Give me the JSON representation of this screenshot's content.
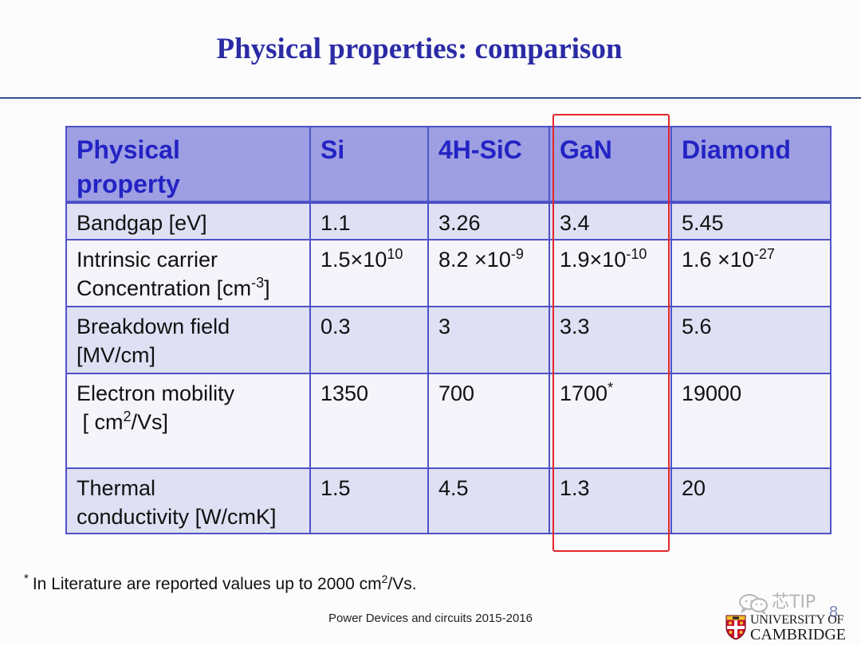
{
  "slide": {
    "title": "Physical properties: comparison",
    "footnote": {
      "mark": "*",
      "text_before": "In Literature are reported values up to 2000 cm",
      "sup": "2",
      "text_after": "/Vs."
    },
    "footer": "Power Devices and circuits 2015-2016",
    "page_number": "8",
    "logo": {
      "icon": "university-shield-icon",
      "line1": "UNIVERSITY OF",
      "line2": "CAMBRIDGE"
    },
    "watermark": {
      "icon": "wechat-icon",
      "text": "芯TIP"
    }
  },
  "table": {
    "header": [
      {
        "lines": [
          [
            {
              "t": "Physical"
            }
          ],
          [
            {
              "t": "property"
            }
          ]
        ]
      },
      {
        "lines": [
          [
            {
              "t": "Si"
            }
          ]
        ]
      },
      {
        "lines": [
          [
            {
              "t": "4H-SiC"
            }
          ]
        ]
      },
      {
        "lines": [
          [
            {
              "t": "GaN"
            }
          ]
        ]
      },
      {
        "lines": [
          [
            {
              "t": "Diamond"
            }
          ]
        ]
      }
    ],
    "rows": [
      {
        "cells": [
          {
            "lines": [
              [
                {
                  "t": "Bandgap [eV]"
                }
              ]
            ]
          },
          {
            "lines": [
              [
                {
                  "t": "1.1"
                }
              ]
            ]
          },
          {
            "lines": [
              [
                {
                  "t": "3.26"
                }
              ]
            ]
          },
          {
            "lines": [
              [
                {
                  "t": "3.4"
                }
              ]
            ]
          },
          {
            "lines": [
              [
                {
                  "t": "5.45"
                }
              ]
            ]
          }
        ]
      },
      {
        "cells": [
          {
            "lines": [
              [
                {
                  "t": "Intrinsic carrier"
                }
              ],
              [
                {
                  "t": "Concentration [cm"
                },
                {
                  "t": "-3",
                  "sup": true
                },
                {
                  "t": "]"
                }
              ]
            ]
          },
          {
            "lines": [
              [
                {
                  "t": "1.5×10"
                },
                {
                  "t": "10",
                  "sup": true
                }
              ]
            ]
          },
          {
            "lines": [
              [
                {
                  "t": "8.2 ×10"
                },
                {
                  "t": "-9",
                  "sup": true
                }
              ]
            ]
          },
          {
            "lines": [
              [
                {
                  "t": "1.9×10"
                },
                {
                  "t": "-10",
                  "sup": true
                }
              ]
            ]
          },
          {
            "lines": [
              [
                {
                  "t": "1.6 ×10"
                },
                {
                  "t": "-27",
                  "sup": true
                }
              ]
            ]
          }
        ]
      },
      {
        "cells": [
          {
            "lines": [
              [
                {
                  "t": "Breakdown field"
                }
              ],
              [
                {
                  "t": "[MV/cm]"
                }
              ]
            ]
          },
          {
            "lines": [
              [
                {
                  "t": "0.3"
                }
              ]
            ]
          },
          {
            "lines": [
              [
                {
                  "t": "3"
                }
              ]
            ]
          },
          {
            "lines": [
              [
                {
                  "t": "3.3"
                }
              ]
            ]
          },
          {
            "lines": [
              [
                {
                  "t": "5.6"
                }
              ]
            ]
          }
        ]
      },
      {
        "cells": [
          {
            "lines": [
              [
                {
                  "t": "Electron mobility"
                }
              ],
              [
                {
                  "t": " [ cm"
                },
                {
                  "t": "2",
                  "sup": true
                },
                {
                  "t": "/Vs]"
                }
              ]
            ]
          },
          {
            "lines": [
              [
                {
                  "t": "1350"
                }
              ]
            ]
          },
          {
            "lines": [
              [
                {
                  "t": "700"
                }
              ]
            ]
          },
          {
            "lines": [
              [
                {
                  "t": "1700"
                },
                {
                  "t": "*",
                  "sup": true
                }
              ]
            ]
          },
          {
            "lines": [
              [
                {
                  "t": "19000"
                }
              ]
            ]
          }
        ]
      },
      {
        "cells": [
          {
            "lines": [
              [
                {
                  "t": "Thermal"
                }
              ],
              [
                {
                  "t": "conductivity [W/cmK]"
                }
              ]
            ]
          },
          {
            "lines": [
              [
                {
                  "t": "1.5"
                }
              ]
            ]
          },
          {
            "lines": [
              [
                {
                  "t": "4.5"
                }
              ]
            ]
          },
          {
            "lines": [
              [
                {
                  "t": "1.3"
                }
              ]
            ]
          },
          {
            "lines": [
              [
                {
                  "t": "20"
                }
              ]
            ]
          }
        ]
      }
    ]
  },
  "colors": {
    "title": "#2b2ba6",
    "rule": "#34538f",
    "header_bg": "#9e9fe2",
    "header_text": "#2323c4",
    "grid": "#4e52c8",
    "band": "#dfe0f3",
    "plain": "#f4f4fa",
    "body_text": "#111111",
    "highlight": "#e3262b",
    "footer_text": "#222222"
  }
}
